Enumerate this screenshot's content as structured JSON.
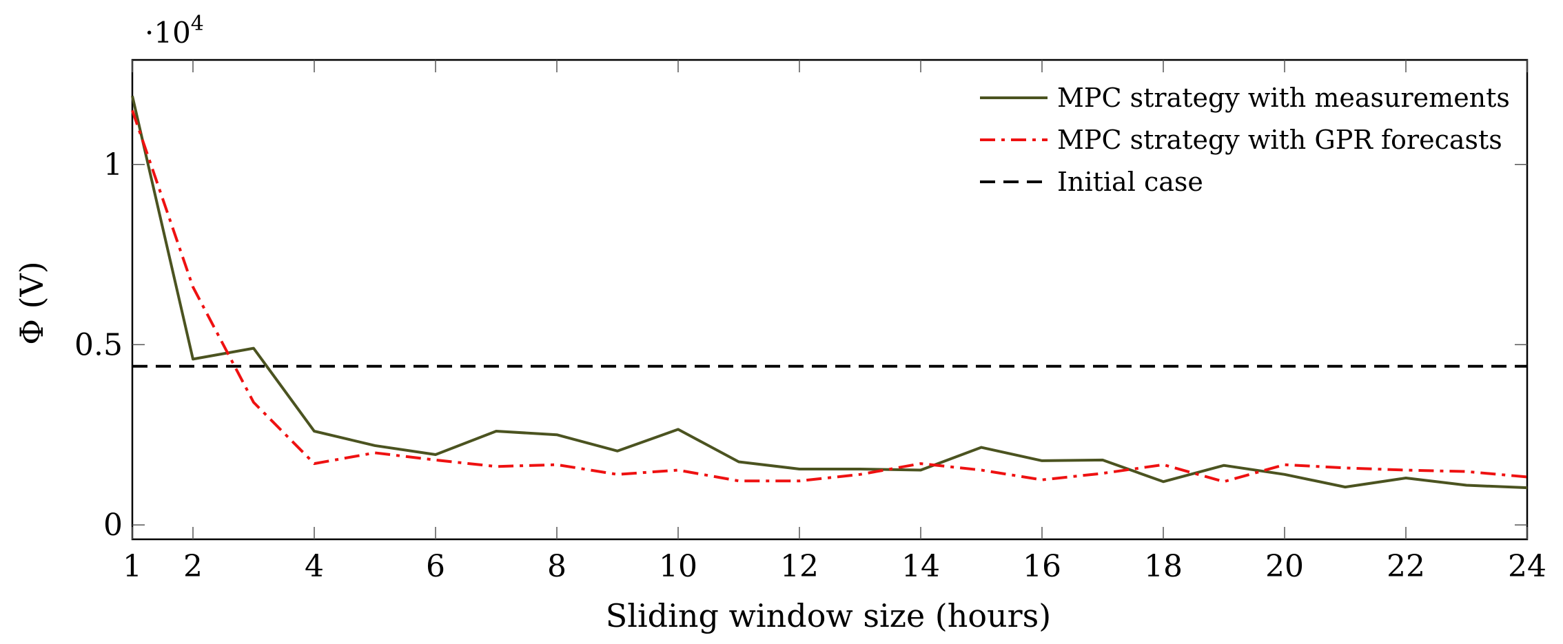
{
  "chart_data": {
    "type": "line",
    "title": "",
    "xlabel": "Sliding window size (hours)",
    "ylabel": "Φ (V)",
    "y_scale_label": "·10",
    "y_scale_exponent": "4",
    "xlim": [
      1,
      24
    ],
    "ylim": [
      -0.04,
      1.29
    ],
    "x_ticks": [
      1,
      2,
      4,
      6,
      8,
      10,
      12,
      14,
      16,
      18,
      20,
      22,
      24
    ],
    "x_tick_labels": [
      "1",
      "2",
      "4",
      "6",
      "8",
      "10",
      "12",
      "14",
      "16",
      "18",
      "20",
      "22",
      "24"
    ],
    "y_ticks": [
      0,
      0.5,
      1
    ],
    "y_tick_labels": [
      "0",
      "0.5",
      "1"
    ],
    "grid": false,
    "legend_position": "top-right",
    "x": [
      1,
      2,
      3,
      4,
      5,
      6,
      7,
      8,
      9,
      10,
      11,
      12,
      13,
      14,
      15,
      16,
      17,
      18,
      19,
      20,
      21,
      22,
      23,
      24
    ],
    "series": [
      {
        "name": "MPC strategy with measurements",
        "color": "#4b5320",
        "style": "solid",
        "values": [
          1.19,
          0.46,
          0.49,
          0.26,
          0.22,
          0.195,
          0.26,
          0.25,
          0.205,
          0.265,
          0.175,
          0.155,
          0.155,
          0.152,
          0.215,
          0.178,
          0.18,
          0.12,
          0.165,
          0.14,
          0.105,
          0.13,
          0.11,
          0.103
        ]
      },
      {
        "name": "MPC strategy with GPR forecasts",
        "color": "#ee1111",
        "style": "dashdot",
        "values": [
          1.15,
          0.66,
          0.34,
          0.17,
          0.2,
          0.18,
          0.162,
          0.167,
          0.14,
          0.152,
          0.122,
          0.122,
          0.14,
          0.17,
          0.152,
          0.125,
          0.143,
          0.167,
          0.12,
          0.167,
          0.158,
          0.152,
          0.148,
          0.133
        ]
      },
      {
        "name": "Initial case",
        "color": "#000000",
        "style": "dashed",
        "values": [
          0.44,
          0.44,
          0.44,
          0.44,
          0.44,
          0.44,
          0.44,
          0.44,
          0.44,
          0.44,
          0.44,
          0.44,
          0.44,
          0.44,
          0.44,
          0.44,
          0.44,
          0.44,
          0.44,
          0.44,
          0.44,
          0.44,
          0.44,
          0.44
        ]
      }
    ]
  }
}
